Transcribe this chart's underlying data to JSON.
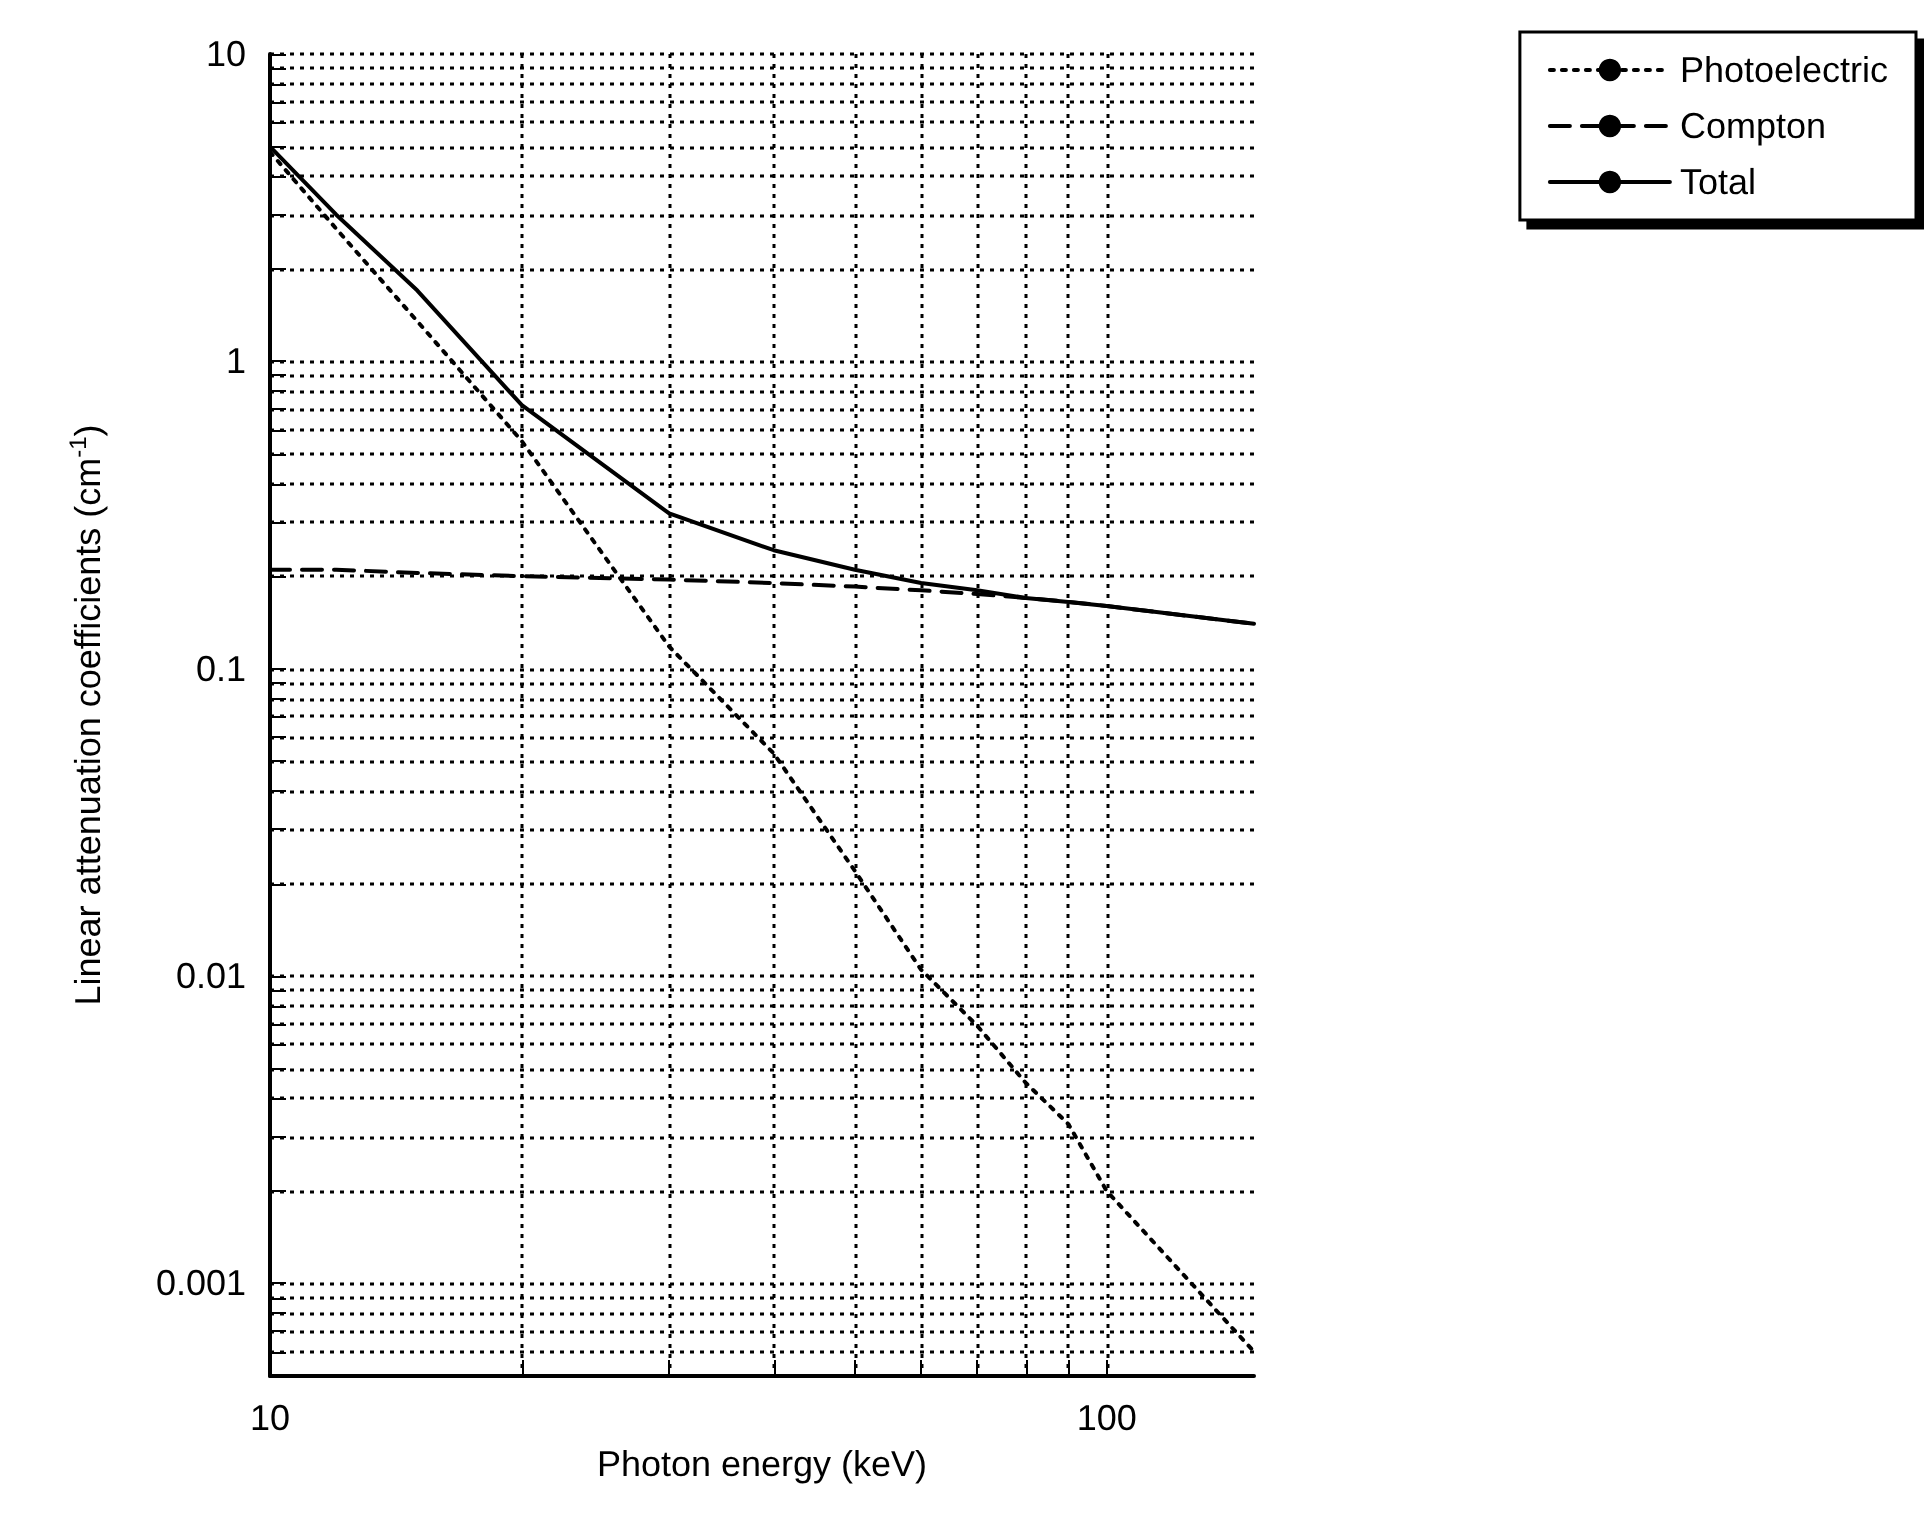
{
  "chart_data": {
    "type": "line",
    "xlabel": "Photon energy (keV)",
    "ylabel": "Linear attenuation coefficients (cm$^{-1}$)",
    "x": [
      10,
      12,
      15,
      20,
      30,
      40,
      50,
      60,
      70,
      80,
      90,
      100,
      150
    ],
    "series": [
      {
        "name": "Photoelectric",
        "color": "#000000",
        "line_style": "dotted",
        "values": [
          4.8,
          2.7,
          1.35,
          0.55,
          0.118,
          0.053,
          0.022,
          0.0105,
          0.0069,
          0.0045,
          0.0033,
          0.002,
          0.0006
        ]
      },
      {
        "name": "Compton",
        "color": "#000000",
        "line_style": "dashed",
        "values": [
          0.21,
          0.21,
          0.205,
          0.2,
          0.195,
          0.19,
          0.185,
          0.18,
          0.175,
          0.17,
          0.165,
          0.16,
          0.14
        ]
      },
      {
        "name": "Total",
        "color": "#000000",
        "line_style": "solid",
        "values": [
          5.0,
          3.0,
          1.7,
          0.72,
          0.32,
          0.243,
          0.21,
          0.19,
          0.18,
          0.17,
          0.165,
          0.16,
          0.14
        ]
      }
    ],
    "log": "xy",
    "xlim": [
      10,
      150
    ],
    "ylim": [
      0.0005,
      10
    ],
    "xticks": [
      10,
      {
        "value": 20,
        "label": null
      },
      {
        "value": 30,
        "label": null
      },
      {
        "value": 40,
        "label": null
      },
      {
        "value": 50,
        "label": null
      },
      {
        "value": 60,
        "label": null
      },
      {
        "value": 70,
        "label": null
      },
      {
        "value": 80,
        "label": null
      },
      {
        "value": 90,
        "label": null
      },
      100
    ],
    "yticks": [
      {
        "value": 0.0006,
        "label": null
      },
      {
        "value": 0.0007,
        "label": null
      },
      {
        "value": 0.0008,
        "label": null
      },
      {
        "value": 0.0009,
        "label": null
      },
      0.001,
      {
        "value": 0.002,
        "label": null
      },
      {
        "value": 0.003,
        "label": null
      },
      {
        "value": 0.004,
        "label": null
      },
      {
        "value": 0.005,
        "label": null
      },
      {
        "value": 0.006,
        "label": null
      },
      {
        "value": 0.007,
        "label": null
      },
      {
        "value": 0.008,
        "label": null
      },
      {
        "value": 0.009,
        "label": null
      },
      0.01,
      {
        "value": 0.02,
        "label": null
      },
      {
        "value": 0.03,
        "label": null
      },
      {
        "value": 0.04,
        "label": null
      },
      {
        "value": 0.05,
        "label": null
      },
      {
        "value": 0.06,
        "label": null
      },
      {
        "value": 0.07,
        "label": null
      },
      {
        "value": 0.08,
        "label": null
      },
      {
        "value": 0.09,
        "label": null
      },
      0.1,
      {
        "value": 0.2,
        "label": null
      },
      {
        "value": 0.3,
        "label": null
      },
      {
        "value": 0.4,
        "label": null
      },
      {
        "value": 0.5,
        "label": null
      },
      {
        "value": 0.6,
        "label": null
      },
      {
        "value": 0.7,
        "label": null
      },
      {
        "value": 0.8,
        "label": null
      },
      {
        "value": 0.9,
        "label": null
      },
      1,
      {
        "value": 2,
        "label": null
      },
      {
        "value": 3,
        "label": null
      },
      {
        "value": 4,
        "label": null
      },
      {
        "value": 5,
        "label": null
      },
      {
        "value": 6,
        "label": null
      },
      {
        "value": 7,
        "label": null
      },
      {
        "value": 8,
        "label": null
      },
      {
        "value": 9,
        "label": null
      },
      10
    ],
    "grid": true,
    "legend": "top right",
    "marker": "none"
  }
}
